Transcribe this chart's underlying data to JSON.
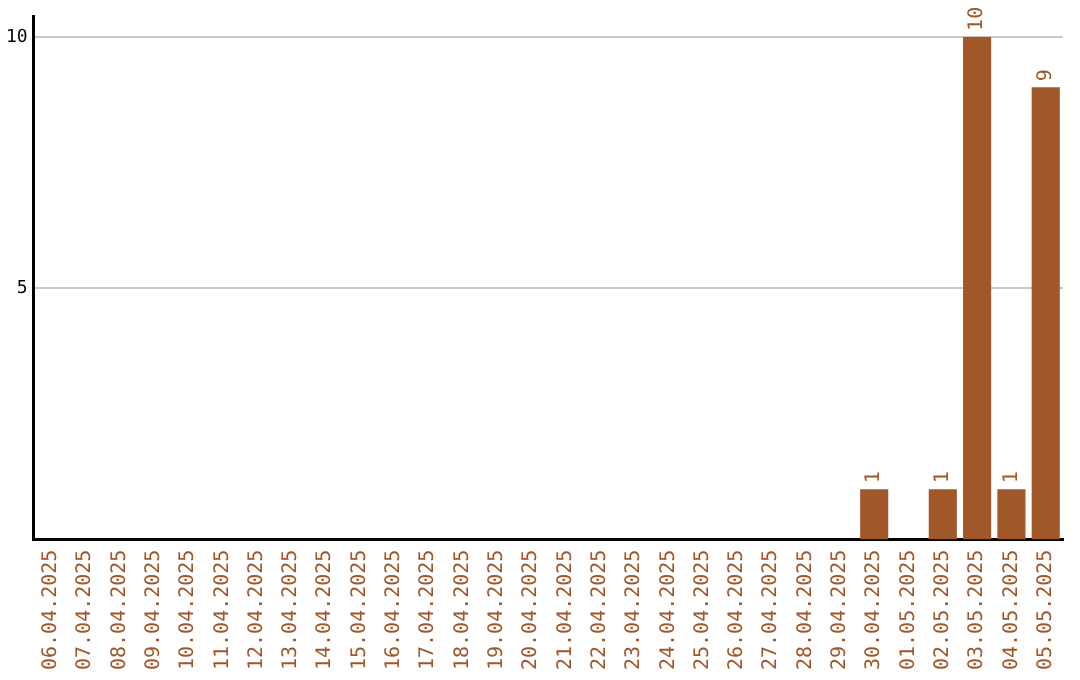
{
  "chart_data": {
    "type": "bar",
    "categories": [
      "06.04.2025",
      "07.04.2025",
      "08.04.2025",
      "09.04.2025",
      "10.04.2025",
      "11.04.2025",
      "12.04.2025",
      "13.04.2025",
      "14.04.2025",
      "15.04.2025",
      "16.04.2025",
      "17.04.2025",
      "18.04.2025",
      "19.04.2025",
      "20.04.2025",
      "21.04.2025",
      "22.04.2025",
      "23.04.2025",
      "24.04.2025",
      "25.04.2025",
      "26.04.2025",
      "27.04.2025",
      "28.04.2025",
      "29.04.2025",
      "30.04.2025",
      "01.05.2025",
      "02.05.2025",
      "03.05.2025",
      "04.05.2025",
      "05.05.2025"
    ],
    "values": [
      0,
      0,
      0,
      0,
      0,
      0,
      0,
      0,
      0,
      0,
      0,
      0,
      0,
      0,
      0,
      0,
      0,
      0,
      0,
      0,
      0,
      0,
      0,
      0,
      1,
      0,
      1,
      10,
      1,
      9
    ],
    "value_labels": [
      null,
      null,
      null,
      null,
      null,
      null,
      null,
      null,
      null,
      null,
      null,
      null,
      null,
      null,
      null,
      null,
      null,
      null,
      null,
      null,
      null,
      null,
      null,
      null,
      "1",
      null,
      "1",
      "10",
      "1",
      "9"
    ],
    "color": "#a0572a",
    "ylim": [
      0,
      10.4
    ],
    "yticks": [
      5,
      10
    ],
    "grid": "y",
    "legend": false
  }
}
